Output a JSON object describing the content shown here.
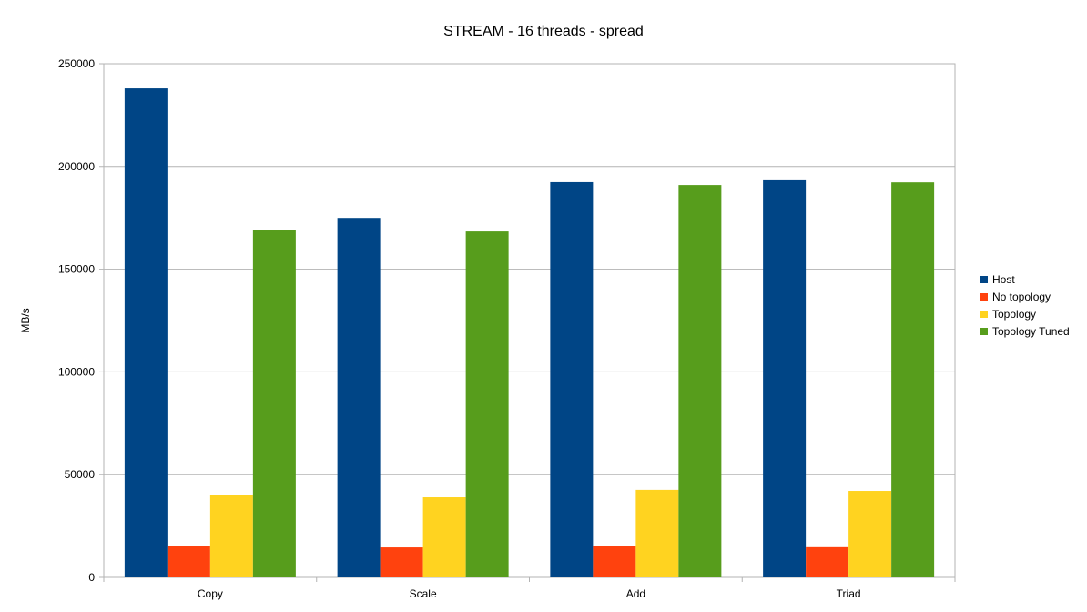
{
  "chart_data": {
    "type": "bar",
    "title": "STREAM - 16 threads - spread",
    "xlabel": "",
    "ylabel": "MB/s",
    "ylim": [
      0,
      250000
    ],
    "yticks": [
      0,
      50000,
      100000,
      150000,
      200000,
      250000
    ],
    "grid": true,
    "legend_position": "right",
    "categories": [
      "Copy",
      "Scale",
      "Add",
      "Triad"
    ],
    "series": [
      {
        "name": "Host",
        "color": "#004586",
        "values": [
          238000,
          175000,
          192400,
          193300
        ]
      },
      {
        "name": "No topology",
        "color": "#ff420e",
        "values": [
          15500,
          14600,
          15100,
          14700
        ]
      },
      {
        "name": "Topology",
        "color": "#ffd320",
        "values": [
          40300,
          39000,
          42600,
          42100
        ]
      },
      {
        "name": "Topology Tuned",
        "color": "#579d1c",
        "values": [
          169300,
          168400,
          191000,
          192300
        ]
      }
    ]
  }
}
